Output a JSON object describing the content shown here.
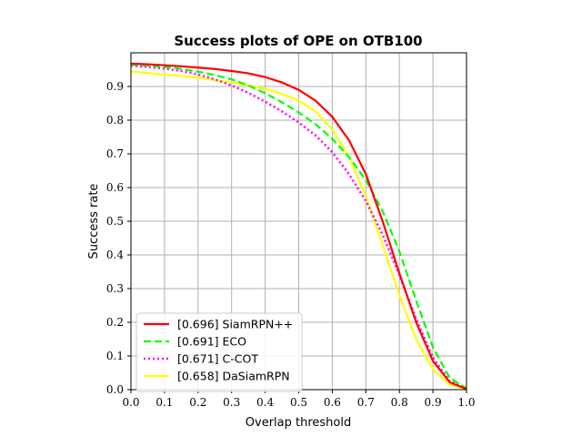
{
  "chart_data": {
    "type": "line",
    "title": "Success plots of OPE on OTB100",
    "xlabel": "Overlap threshold",
    "ylabel": "Success rate",
    "xlim": [
      0.0,
      1.0
    ],
    "ylim": [
      0.0,
      1.0
    ],
    "grid": true,
    "legend_position": "lower-left",
    "x_ticks": [
      "0.0",
      "0.1",
      "0.2",
      "0.3",
      "0.4",
      "0.5",
      "0.6",
      "0.7",
      "0.8",
      "0.9",
      "1.0"
    ],
    "y_ticks": [
      "0.0",
      "0.1",
      "0.2",
      "0.3",
      "0.4",
      "0.5",
      "0.6",
      "0.7",
      "0.8",
      "0.9"
    ],
    "x_tick_values": [
      0.0,
      0.1,
      0.2,
      0.3,
      0.4,
      0.5,
      0.6,
      0.7,
      0.8,
      0.9,
      1.0
    ],
    "y_tick_values": [
      0.0,
      0.1,
      0.2,
      0.3,
      0.4,
      0.5,
      0.6,
      0.7,
      0.8,
      0.9
    ],
    "x": [
      0.0,
      0.05,
      0.1,
      0.15,
      0.2,
      0.25,
      0.3,
      0.35,
      0.4,
      0.45,
      0.5,
      0.55,
      0.6,
      0.65,
      0.7,
      0.75,
      0.8,
      0.85,
      0.9,
      0.95,
      1.0
    ],
    "series": [
      {
        "name": "SiamRPN++",
        "label": "[0.696] SiamRPN++",
        "color": "#ff0000",
        "style": "solid",
        "values": [
          0.968,
          0.966,
          0.963,
          0.96,
          0.956,
          0.952,
          0.946,
          0.939,
          0.928,
          0.912,
          0.89,
          0.858,
          0.81,
          0.74,
          0.64,
          0.5,
          0.345,
          0.2,
          0.085,
          0.022,
          0.002
        ]
      },
      {
        "name": "ECO",
        "label": "[0.691] ECO",
        "color": "#00ff00",
        "style": "dashed",
        "values": [
          0.965,
          0.962,
          0.958,
          0.952,
          0.944,
          0.934,
          0.921,
          0.903,
          0.88,
          0.853,
          0.823,
          0.788,
          0.745,
          0.69,
          0.622,
          0.53,
          0.41,
          0.265,
          0.125,
          0.035,
          0.004
        ]
      },
      {
        "name": "C-COT",
        "label": "[0.671] C-COT",
        "color": "#ff00ff",
        "style": "dotted",
        "values": [
          0.962,
          0.958,
          0.953,
          0.946,
          0.936,
          0.921,
          0.903,
          0.881,
          0.855,
          0.826,
          0.793,
          0.755,
          0.705,
          0.64,
          0.56,
          0.46,
          0.34,
          0.21,
          0.095,
          0.025,
          0.003
        ]
      },
      {
        "name": "DaSiamRPN",
        "label": "[0.658] DaSiamRPN",
        "color": "#ffff00",
        "style": "solid",
        "values": [
          0.945,
          0.94,
          0.935,
          0.931,
          0.926,
          0.919,
          0.912,
          0.903,
          0.893,
          0.878,
          0.858,
          0.826,
          0.772,
          0.69,
          0.575,
          0.43,
          0.28,
          0.15,
          0.06,
          0.015,
          0.002
        ]
      }
    ]
  }
}
